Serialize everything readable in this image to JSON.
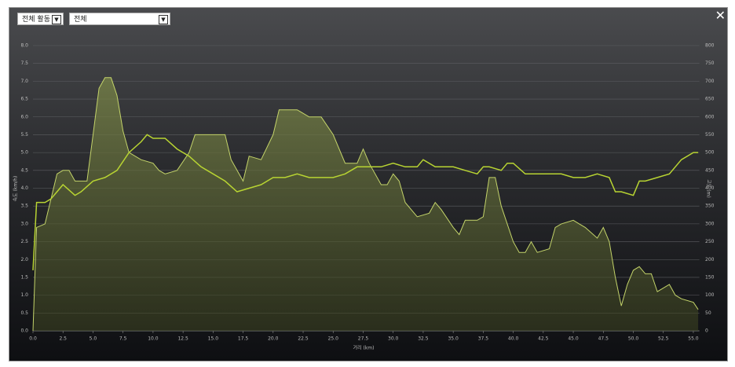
{
  "controls": {
    "activity": "전체 활동",
    "filter": "전체"
  },
  "chart_data": {
    "type": "line",
    "xlabel": "거리 (km)",
    "ylabel": "속도 (km/h)",
    "y2label": "고도 (m)",
    "xlim": [
      0,
      55.5
    ],
    "xticks": [
      {
        "value": 0,
        "label": "0.0"
      },
      {
        "value": 2.5,
        "label": "2.5"
      },
      {
        "value": 5,
        "label": "5.0"
      },
      {
        "value": 7.5,
        "label": "7.5"
      },
      {
        "value": 10,
        "label": "10.0"
      },
      {
        "value": 12.5,
        "label": "12.5"
      },
      {
        "value": 15,
        "label": "15.0"
      },
      {
        "value": 17.5,
        "label": "17.5"
      },
      {
        "value": 20,
        "label": "20.0"
      },
      {
        "value": 22.5,
        "label": "22.5"
      },
      {
        "value": 25,
        "label": "25.0"
      },
      {
        "value": 27.5,
        "label": "27.5"
      },
      {
        "value": 30,
        "label": "30.0"
      },
      {
        "value": 32.5,
        "label": "32.5"
      },
      {
        "value": 35,
        "label": "35.0"
      },
      {
        "value": 37.5,
        "label": "37.5"
      },
      {
        "value": 40,
        "label": "40.0"
      },
      {
        "value": 42.5,
        "label": "42.5"
      },
      {
        "value": 45,
        "label": "45.0"
      },
      {
        "value": 47.5,
        "label": "47.5"
      },
      {
        "value": 50,
        "label": "50.0"
      },
      {
        "value": 52.5,
        "label": "52.5"
      },
      {
        "value": 55,
        "label": "55.0"
      }
    ],
    "ylim": [
      0,
      8
    ],
    "yticks": [
      {
        "value": 0,
        "label": "0.0"
      },
      {
        "value": 0.5,
        "label": "0.5"
      },
      {
        "value": 1,
        "label": "1.0"
      },
      {
        "value": 1.5,
        "label": "1.5"
      },
      {
        "value": 2,
        "label": "2.0"
      },
      {
        "value": 2.5,
        "label": "2.5"
      },
      {
        "value": 3,
        "label": "3.0"
      },
      {
        "value": 3.5,
        "label": "3.5"
      },
      {
        "value": 4,
        "label": "4.0"
      },
      {
        "value": 4.5,
        "label": "4.5"
      },
      {
        "value": 5,
        "label": "5.0"
      },
      {
        "value": 5.5,
        "label": "5.5"
      },
      {
        "value": 6,
        "label": "6.0"
      },
      {
        "value": 6.5,
        "label": "6.5"
      },
      {
        "value": 7,
        "label": "7.0"
      },
      {
        "value": 7.5,
        "label": "7.5"
      },
      {
        "value": 8,
        "label": "8.0"
      }
    ],
    "y2lim": [
      0,
      800
    ],
    "y2ticks": [
      0,
      50,
      100,
      150,
      200,
      250,
      300,
      350,
      400,
      450,
      500,
      550,
      600,
      650,
      700,
      750,
      800
    ],
    "grid": true,
    "series": [
      {
        "type": "area",
        "axis": "y2",
        "color": "#c4d46a",
        "x": [
          0,
          0.3,
          1,
          2,
          2.5,
          3,
          3.5,
          4.5,
          5,
          5.5,
          6,
          6.5,
          7,
          7.5,
          8,
          9,
          10,
          10.5,
          11,
          12,
          13,
          13.5,
          15,
          16,
          16.5,
          17.5,
          18,
          19,
          20,
          20.5,
          22,
          22.5,
          23,
          24,
          25,
          26,
          27,
          27.5,
          28,
          29,
          29.5,
          30,
          30.5,
          31,
          32,
          33,
          33.5,
          34,
          35,
          35.5,
          36,
          37,
          37.5,
          38,
          38.5,
          39,
          40,
          40.5,
          41,
          41.5,
          42,
          43,
          43.5,
          44,
          45,
          45.5,
          46,
          47,
          47.5,
          48,
          48.5,
          49,
          49.5,
          50,
          50.5,
          51,
          51.5,
          52,
          52.5,
          53,
          53.5,
          54,
          55,
          55.4
        ],
        "values": [
          0,
          290,
          300,
          440,
          450,
          450,
          420,
          420,
          550,
          680,
          710,
          710,
          660,
          560,
          500,
          480,
          470,
          450,
          440,
          450,
          500,
          550,
          550,
          550,
          480,
          420,
          490,
          480,
          550,
          620,
          620,
          610,
          600,
          600,
          550,
          470,
          470,
          510,
          470,
          410,
          410,
          440,
          420,
          360,
          320,
          330,
          360,
          340,
          290,
          270,
          310,
          310,
          320,
          430,
          430,
          350,
          250,
          220,
          220,
          250,
          220,
          230,
          290,
          300,
          310,
          300,
          290,
          260,
          290,
          250,
          150,
          70,
          130,
          170,
          180,
          160,
          160,
          110,
          120,
          130,
          100,
          90,
          80,
          60
        ]
      },
      {
        "color": "#b8d432",
        "x": [
          0,
          0.3,
          1,
          1.5,
          2,
          2.5,
          3.5,
          4,
          5,
          6,
          7,
          8,
          9,
          9.5,
          10,
          11,
          12,
          13,
          14,
          15,
          16,
          17,
          18,
          19,
          20,
          21,
          22,
          23,
          24,
          25,
          26,
          27,
          28,
          29,
          30,
          31,
          32,
          32.5,
          33.5,
          34,
          35,
          36,
          37,
          37.5,
          38,
          39,
          39.5,
          40,
          41,
          42,
          43,
          44,
          45,
          46,
          47,
          48,
          48.5,
          49,
          50,
          50.5,
          51,
          52,
          53,
          54,
          55,
          55.4
        ],
        "values": [
          1.7,
          3.6,
          3.6,
          3.7,
          3.9,
          4.1,
          3.8,
          3.9,
          4.2,
          4.3,
          4.5,
          5.0,
          5.3,
          5.5,
          5.4,
          5.4,
          5.1,
          4.9,
          4.6,
          4.4,
          4.2,
          3.9,
          4.0,
          4.1,
          4.3,
          4.3,
          4.4,
          4.3,
          4.3,
          4.3,
          4.4,
          4.6,
          4.6,
          4.6,
          4.7,
          4.6,
          4.6,
          4.8,
          4.6,
          4.6,
          4.6,
          4.5,
          4.4,
          4.6,
          4.6,
          4.5,
          4.7,
          4.7,
          4.4,
          4.4,
          4.4,
          4.4,
          4.3,
          4.3,
          4.4,
          4.3,
          3.9,
          3.9,
          3.8,
          4.2,
          4.2,
          4.3,
          4.4,
          4.8,
          5.0,
          5.0
        ]
      }
    ]
  }
}
